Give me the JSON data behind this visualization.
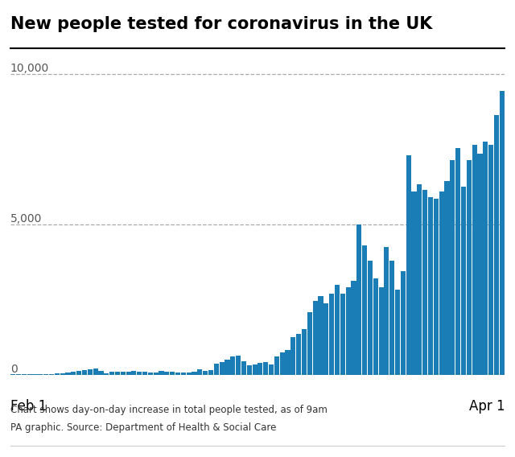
{
  "title": "New people tested for coronavirus in the UK",
  "subtitle1": "Chart shows day-on-day increase in total people tested, as of 9am",
  "subtitle2": "PA graphic. Source: Department of Health & Social Care",
  "bar_color": "#1a7db5",
  "background_color": "#ffffff",
  "xlabel_left": "Feb 1",
  "xlabel_right": "Apr 1",
  "ytick_labels": [
    "10,000",
    "5,000",
    "0"
  ],
  "ytick_vals": [
    10000,
    5000,
    0
  ],
  "ylim": [
    0,
    10800
  ],
  "values": [
    20,
    10,
    10,
    10,
    15,
    20,
    25,
    30,
    50,
    60,
    80,
    100,
    140,
    160,
    190,
    210,
    130,
    50,
    100,
    90,
    110,
    110,
    130,
    90,
    90,
    70,
    85,
    120,
    100,
    90,
    85,
    75,
    85,
    90,
    190,
    130,
    150,
    380,
    410,
    510,
    600,
    640,
    440,
    310,
    350,
    390,
    410,
    340,
    610,
    740,
    820,
    1260,
    1350,
    1530,
    2090,
    2460,
    2620,
    2390,
    2690,
    2990,
    2700,
    2920,
    3140,
    5000,
    4300,
    3800,
    3200,
    2920,
    4250,
    3800,
    2820,
    3450,
    7300,
    6100,
    6350,
    6150,
    5900,
    5850,
    6100,
    6450,
    7150,
    7550,
    6250,
    7150,
    7650,
    7350,
    7750,
    7650,
    8650,
    9450
  ]
}
